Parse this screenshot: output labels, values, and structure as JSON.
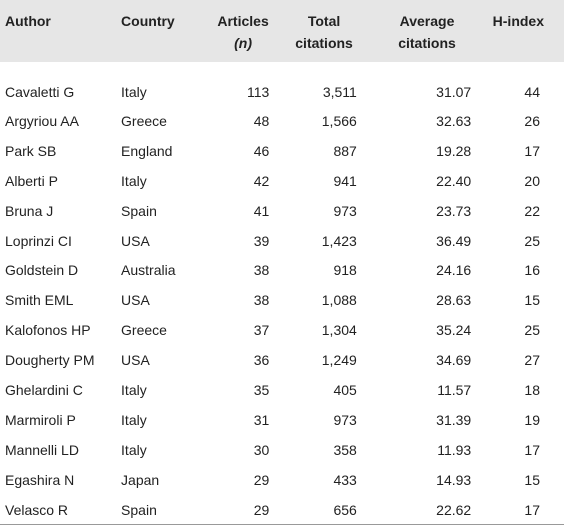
{
  "headers": {
    "author": "Author",
    "country": "Country",
    "articles": "Articles",
    "articles_sub": "(n)",
    "total_citations": "Total citations",
    "average_citations": "Average citations",
    "h_index": "H-index"
  },
  "rows": [
    {
      "author": "Cavaletti G",
      "country": "Italy",
      "articles": "113",
      "total": "3,511",
      "avg": "31.07",
      "h": "44"
    },
    {
      "author": "Argyriou AA",
      "country": "Greece",
      "articles": "48",
      "total": "1,566",
      "avg": "32.63",
      "h": "26"
    },
    {
      "author": "Park SB",
      "country": "England",
      "articles": "46",
      "total": "887",
      "avg": "19.28",
      "h": "17"
    },
    {
      "author": "Alberti P",
      "country": "Italy",
      "articles": "42",
      "total": "941",
      "avg": "22.40",
      "h": "20"
    },
    {
      "author": "Bruna J",
      "country": "Spain",
      "articles": "41",
      "total": "973",
      "avg": "23.73",
      "h": "22"
    },
    {
      "author": "Loprinzi CI",
      "country": "USA",
      "articles": "39",
      "total": "1,423",
      "avg": "36.49",
      "h": "25"
    },
    {
      "author": "Goldstein D",
      "country": "Australia",
      "articles": "38",
      "total": "918",
      "avg": "24.16",
      "h": "16"
    },
    {
      "author": "Smith EML",
      "country": "USA",
      "articles": "38",
      "total": "1,088",
      "avg": "28.63",
      "h": "15"
    },
    {
      "author": "Kalofonos HP",
      "country": "Greece",
      "articles": "37",
      "total": "1,304",
      "avg": "35.24",
      "h": "25"
    },
    {
      "author": "Dougherty PM",
      "country": "USA",
      "articles": "36",
      "total": "1,249",
      "avg": "34.69",
      "h": "27"
    },
    {
      "author": "Ghelardini C",
      "country": "Italy",
      "articles": "35",
      "total": "405",
      "avg": "11.57",
      "h": "18"
    },
    {
      "author": "Marmiroli P",
      "country": "Italy",
      "articles": "31",
      "total": "973",
      "avg": "31.39",
      "h": "19"
    },
    {
      "author": "Mannelli LD",
      "country": "Italy",
      "articles": "30",
      "total": "358",
      "avg": "11.93",
      "h": "17"
    },
    {
      "author": "Egashira N",
      "country": "Japan",
      "articles": "29",
      "total": "433",
      "avg": "14.93",
      "h": "15"
    },
    {
      "author": "Velasco R",
      "country": "Spain",
      "articles": "29",
      "total": "656",
      "avg": "22.62",
      "h": "17"
    }
  ]
}
